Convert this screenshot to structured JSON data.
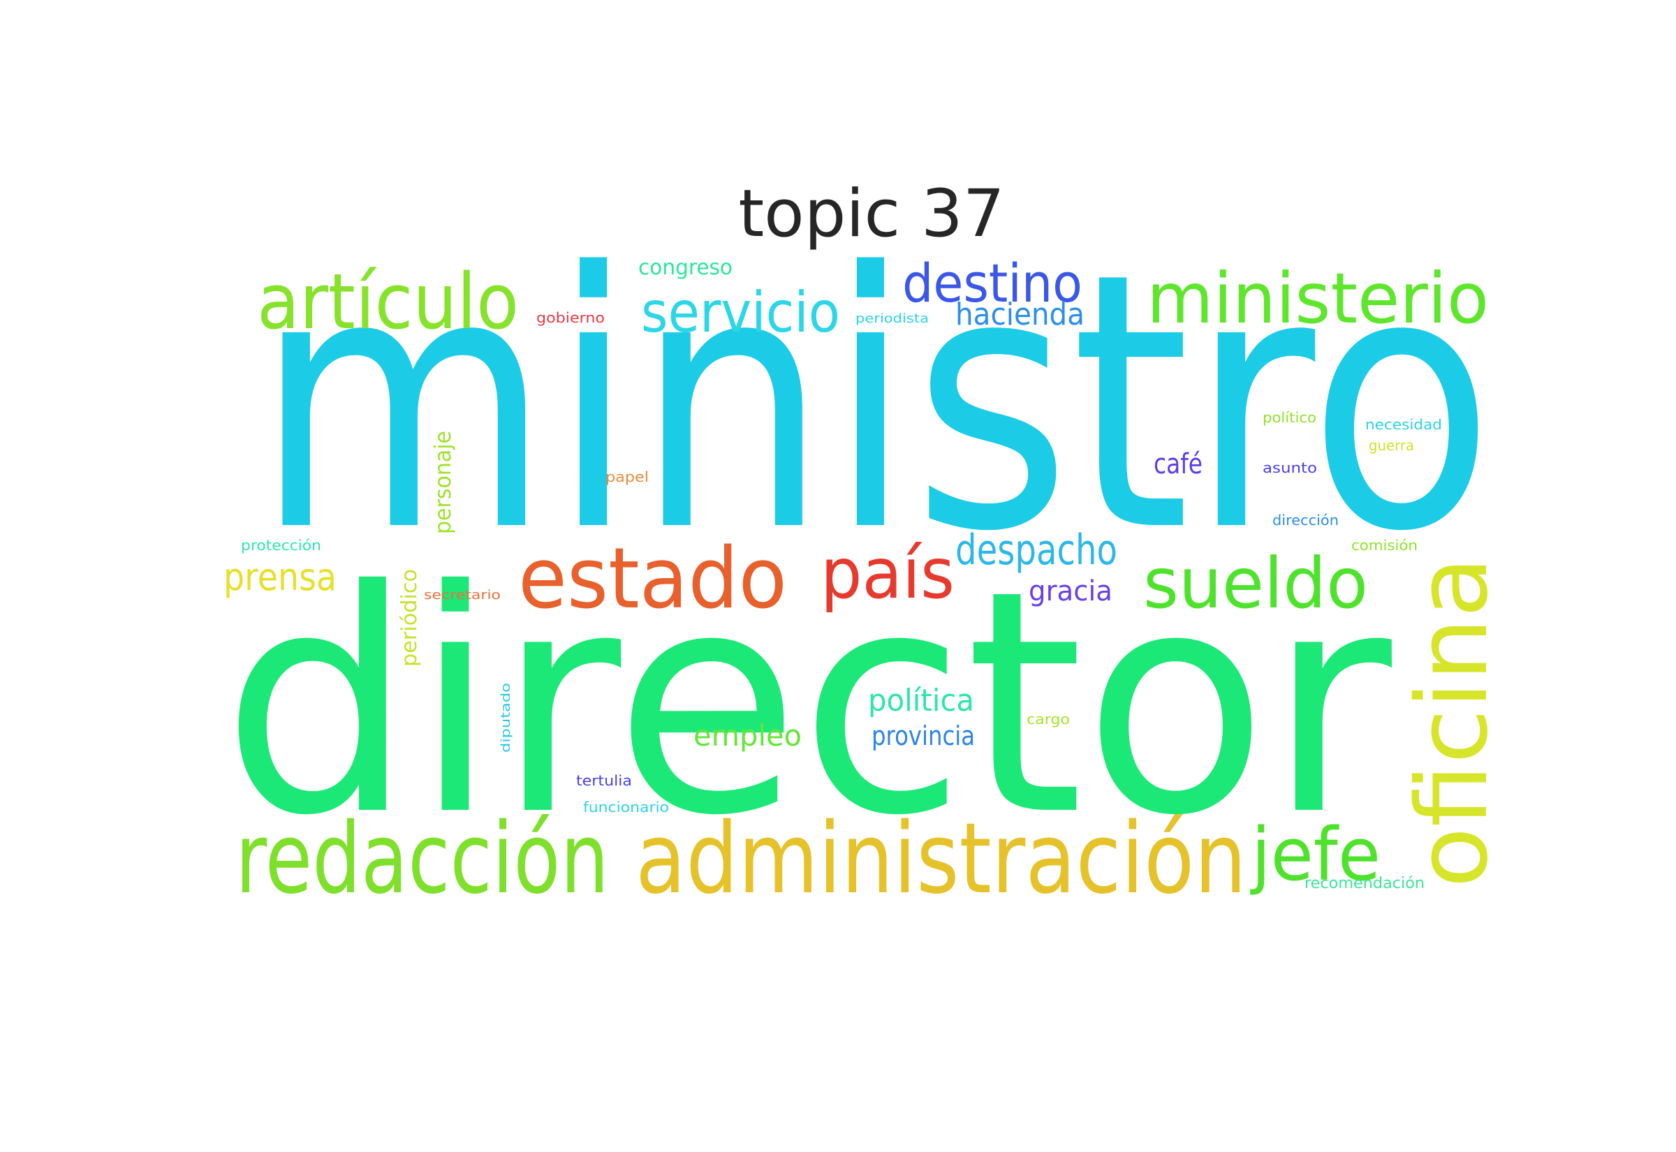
{
  "title": "topic 37",
  "words": [
    {
      "text": "ministro",
      "color": "#1ccbe6"
    },
    {
      "text": "director",
      "color": "#1be877"
    },
    {
      "text": "administración",
      "color": "#e5c22a"
    },
    {
      "text": "redacción",
      "color": "#7ee02a"
    },
    {
      "text": "oficina",
      "color": "#d7e52a"
    },
    {
      "text": "artículo",
      "color": "#86e22a"
    },
    {
      "text": "ministerio",
      "color": "#5ee62c"
    },
    {
      "text": "estado",
      "color": "#e8602c"
    },
    {
      "text": "país",
      "color": "#e63a2e"
    },
    {
      "text": "sueldo",
      "color": "#4fe22c"
    },
    {
      "text": "jefe",
      "color": "#4fe22c"
    },
    {
      "text": "servicio",
      "color": "#2bd6e6"
    },
    {
      "text": "destino",
      "color": "#3b57e8"
    },
    {
      "text": "despacho",
      "color": "#2bb7e8"
    },
    {
      "text": "prensa",
      "color": "#e6e02a"
    },
    {
      "text": "hacienda",
      "color": "#2b8ee8"
    },
    {
      "text": "política",
      "color": "#2be6a8"
    },
    {
      "text": "empleo",
      "color": "#63e63a"
    },
    {
      "text": "provincia",
      "color": "#2b84e8"
    },
    {
      "text": "gracia",
      "color": "#6a3fe8"
    },
    {
      "text": "café",
      "color": "#5a3fe8"
    },
    {
      "text": "personaje",
      "color": "#9ee22a"
    },
    {
      "text": "periódico",
      "color": "#c7e22a"
    },
    {
      "text": "congreso",
      "color": "#2be69a"
    },
    {
      "text": "gobierno",
      "color": "#e63a46"
    },
    {
      "text": "periodista",
      "color": "#2bd2e6"
    },
    {
      "text": "papel",
      "color": "#e88a3a"
    },
    {
      "text": "protección",
      "color": "#2be6b0"
    },
    {
      "text": "secretario",
      "color": "#e8703a"
    },
    {
      "text": "diputado",
      "color": "#2bc6e6"
    },
    {
      "text": "tertulia",
      "color": "#4b3fe8"
    },
    {
      "text": "funcionario",
      "color": "#2bd2e6"
    },
    {
      "text": "cargo",
      "color": "#a6e22a"
    },
    {
      "text": "político",
      "color": "#8ee22a"
    },
    {
      "text": "necesidad",
      "color": "#2bd2e6"
    },
    {
      "text": "guerra",
      "color": "#d0e22a"
    },
    {
      "text": "asunto",
      "color": "#4b3fe8"
    },
    {
      "text": "dirección",
      "color": "#2b8ee8"
    },
    {
      "text": "comisión",
      "color": "#8ee22a"
    },
    {
      "text": "recomendación",
      "color": "#3be69a"
    }
  ]
}
